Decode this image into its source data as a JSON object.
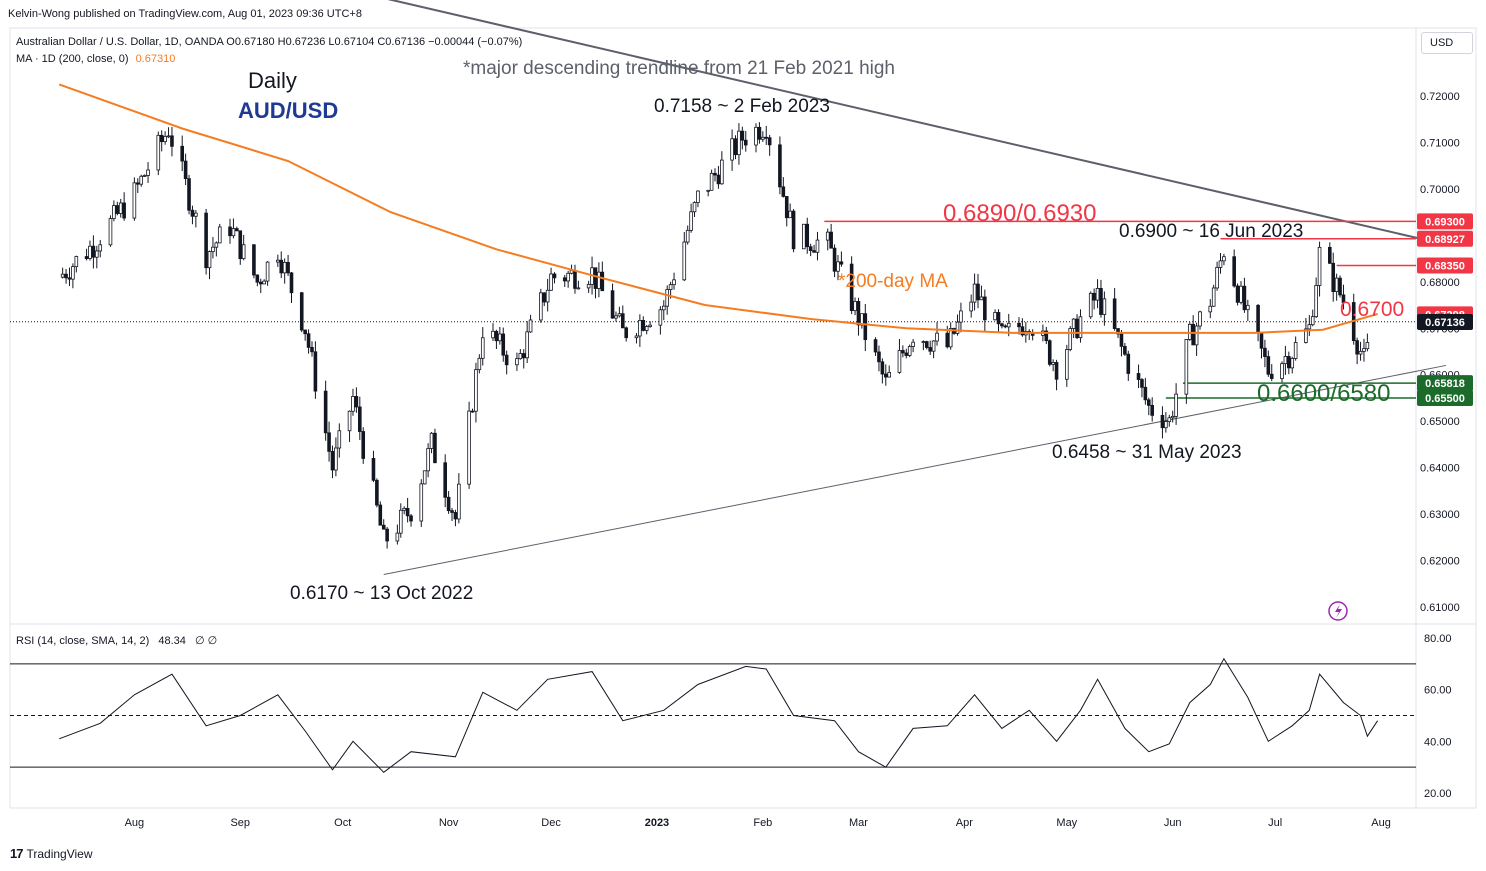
{
  "header": {
    "published": "Kelvin-Wong published on TradingView.com, Aug 01, 2023 09:36 UTC+8",
    "symbol_line": "Australian Dollar / U.S. Dollar, 1D, OANDA  O0.67180  H0.67236  L0.67104  C0.67136  −0.00044 (−0.07%)",
    "ma_label": "MA · 1D (200, close, 0)",
    "ma_value": "0.67310",
    "currency_button": "USD"
  },
  "annotations": {
    "daily": "Daily",
    "pair": "AUD/USD",
    "trendline_note": "*major descending trendline from 21 Feb 2021 high",
    "high_feb": "0.7158 ~ 2 Feb 2023",
    "resistance_zone": "0.6890/0.6930",
    "high_jun": "0.6900 ~ 16 Jun 2023",
    "ma_note": "*200-day MA",
    "level_0700": "0.6700",
    "support_zone": "0.6600/6580",
    "low_may": "0.6458 ~ 31 May 2023",
    "low_oct": "0.6170 ~ 13 Oct 2022"
  },
  "rsi_legend": {
    "label": "RSI (14, close, SMA, 14, 2)",
    "value": "48.34",
    "extra": "∅ ∅"
  },
  "branding": "TradingView",
  "colors": {
    "up": "#131722",
    "down": "#131722",
    "ma": "#f57c20",
    "resistance": "#f23645",
    "support": "#1b6b2a",
    "trendline": "#5d606b",
    "rsi_line": "#131722",
    "label_blue": "#1f3a93"
  },
  "chart_data": {
    "type": "candlestick",
    "price_axis": {
      "ticks": [
        "0.72000",
        "0.71000",
        "0.70000",
        "0.69000",
        "0.68000",
        "0.67000",
        "0.66000",
        "0.65000",
        "0.64000",
        "0.63000",
        "0.62000",
        "0.61000"
      ],
      "min": 0.608,
      "max": 0.727
    },
    "time_axis": [
      "Aug",
      "Sep",
      "Oct",
      "Nov",
      "Dec",
      "2023",
      "Feb",
      "Mar",
      "Apr",
      "May",
      "Jun",
      "Jul",
      "Aug"
    ],
    "price_labels": [
      {
        "text": "0.69300",
        "value": 0.693,
        "color": "#f23645"
      },
      {
        "text": "0.68927",
        "value": 0.68927,
        "color": "#f23645"
      },
      {
        "text": "0.68350",
        "value": 0.6835,
        "color": "#f23645"
      },
      {
        "text": "0.67298",
        "value": 0.67298,
        "color": "#f23645"
      },
      {
        "text": "0.67136",
        "value": 0.67136,
        "color": "#131722"
      },
      {
        "text": "0.65818",
        "value": 0.65818,
        "color": "#1b6b2a"
      },
      {
        "text": "0.65500",
        "value": 0.655,
        "color": "#1b6b2a"
      }
    ],
    "close_series": [
      {
        "d": "2022-07-10",
        "c": 0.681
      },
      {
        "d": "2022-07-20",
        "c": 0.688
      },
      {
        "d": "2022-08-01",
        "c": 0.699
      },
      {
        "d": "2022-08-11",
        "c": 0.713
      },
      {
        "d": "2022-08-22",
        "c": 0.686
      },
      {
        "d": "2022-08-29",
        "c": 0.692
      },
      {
        "d": "2022-09-06",
        "c": 0.68
      },
      {
        "d": "2022-09-12",
        "c": 0.687
      },
      {
        "d": "2022-09-20",
        "c": 0.67
      },
      {
        "d": "2022-09-28",
        "c": 0.64
      },
      {
        "d": "2022-10-04",
        "c": 0.655
      },
      {
        "d": "2022-10-13",
        "c": 0.624
      },
      {
        "d": "2022-10-21",
        "c": 0.631
      },
      {
        "d": "2022-10-27",
        "c": 0.645
      },
      {
        "d": "2022-11-03",
        "c": 0.629
      },
      {
        "d": "2022-11-11",
        "c": 0.67
      },
      {
        "d": "2022-11-21",
        "c": 0.662
      },
      {
        "d": "2022-12-01",
        "c": 0.681
      },
      {
        "d": "2022-12-13",
        "c": 0.682
      },
      {
        "d": "2022-12-22",
        "c": 0.669
      },
      {
        "d": "2023-01-03",
        "c": 0.675
      },
      {
        "d": "2023-01-13",
        "c": 0.698
      },
      {
        "d": "2023-01-26",
        "c": 0.711
      },
      {
        "d": "2023-02-02",
        "c": 0.714
      },
      {
        "d": "2023-02-10",
        "c": 0.69
      },
      {
        "d": "2023-02-20",
        "c": 0.688
      },
      {
        "d": "2023-02-28",
        "c": 0.674
      },
      {
        "d": "2023-03-09",
        "c": 0.658
      },
      {
        "d": "2023-03-17",
        "c": 0.669
      },
      {
        "d": "2023-03-27",
        "c": 0.666
      },
      {
        "d": "2023-04-04",
        "c": 0.678
      },
      {
        "d": "2023-04-12",
        "c": 0.668
      },
      {
        "d": "2023-04-20",
        "c": 0.672
      },
      {
        "d": "2023-04-28",
        "c": 0.662
      },
      {
        "d": "2023-05-05",
        "c": 0.672
      },
      {
        "d": "2023-05-10",
        "c": 0.677
      },
      {
        "d": "2023-05-18",
        "c": 0.664
      },
      {
        "d": "2023-05-25",
        "c": 0.653
      },
      {
        "d": "2023-05-31",
        "c": 0.65
      },
      {
        "d": "2023-06-06",
        "c": 0.668
      },
      {
        "d": "2023-06-12",
        "c": 0.676
      },
      {
        "d": "2023-06-16",
        "c": 0.687
      },
      {
        "d": "2023-06-23",
        "c": 0.672
      },
      {
        "d": "2023-06-29",
        "c": 0.661
      },
      {
        "d": "2023-07-06",
        "c": 0.665
      },
      {
        "d": "2023-07-11",
        "c": 0.67
      },
      {
        "d": "2023-07-14",
        "c": 0.686
      },
      {
        "d": "2023-07-21",
        "c": 0.676
      },
      {
        "d": "2023-07-27",
        "c": 0.663
      },
      {
        "d": "2023-07-31",
        "c": 0.6714
      }
    ],
    "ma200": {
      "name": "MA 200",
      "points": [
        {
          "d": "2022-07-10",
          "v": 0.7225
        },
        {
          "d": "2022-08-15",
          "v": 0.713
        },
        {
          "d": "2022-09-15",
          "v": 0.706
        },
        {
          "d": "2022-10-15",
          "v": 0.695
        },
        {
          "d": "2022-11-15",
          "v": 0.687
        },
        {
          "d": "2022-12-15",
          "v": 0.681
        },
        {
          "d": "2023-01-15",
          "v": 0.675
        },
        {
          "d": "2023-02-15",
          "v": 0.672
        },
        {
          "d": "2023-03-15",
          "v": 0.67
        },
        {
          "d": "2023-04-15",
          "v": 0.669
        },
        {
          "d": "2023-05-15",
          "v": 0.669
        },
        {
          "d": "2023-06-05",
          "v": 0.669
        },
        {
          "d": "2023-06-25",
          "v": 0.669
        },
        {
          "d": "2023-07-15",
          "v": 0.6697
        },
        {
          "d": "2023-07-31",
          "v": 0.6731
        }
      ]
    },
    "trendlines": [
      {
        "from": {
          "d": "2022-09-20",
          "v": 0.745
        },
        "to": {
          "d": "2023-08-20",
          "v": 0.688
        }
      },
      {
        "from": {
          "d": "2022-10-13",
          "v": 0.617
        },
        "to": {
          "d": "2023-08-20",
          "v": 0.662
        }
      }
    ],
    "levels": [
      {
        "v": 0.693,
        "from": "2023-02-19",
        "color": "#f23645"
      },
      {
        "v": 0.68927,
        "from": "2023-06-15",
        "color": "#f23645"
      },
      {
        "v": 0.6835,
        "from": "2023-07-19",
        "color": "#f23645"
      },
      {
        "v": 0.65818,
        "from": "2023-06-04",
        "color": "#1b6b2a"
      },
      {
        "v": 0.655,
        "from": "2023-05-30",
        "color": "#1b6b2a"
      }
    ],
    "rsi": {
      "axis_ticks": [
        "80.00",
        "60.00",
        "40.00",
        "20.00"
      ],
      "min": 14,
      "max": 82,
      "bands": [
        70,
        50,
        30
      ],
      "points": [
        {
          "d": "2022-07-10",
          "v": 41
        },
        {
          "d": "2022-07-22",
          "v": 47
        },
        {
          "d": "2022-08-01",
          "v": 58
        },
        {
          "d": "2022-08-12",
          "v": 66
        },
        {
          "d": "2022-08-22",
          "v": 46
        },
        {
          "d": "2022-09-01",
          "v": 50
        },
        {
          "d": "2022-09-12",
          "v": 58
        },
        {
          "d": "2022-09-20",
          "v": 44
        },
        {
          "d": "2022-09-28",
          "v": 29
        },
        {
          "d": "2022-10-04",
          "v": 40
        },
        {
          "d": "2022-10-13",
          "v": 28
        },
        {
          "d": "2022-10-21",
          "v": 36
        },
        {
          "d": "2022-11-03",
          "v": 34
        },
        {
          "d": "2022-11-11",
          "v": 59
        },
        {
          "d": "2022-11-21",
          "v": 52
        },
        {
          "d": "2022-11-30",
          "v": 64
        },
        {
          "d": "2022-12-13",
          "v": 67
        },
        {
          "d": "2022-12-22",
          "v": 48
        },
        {
          "d": "2023-01-03",
          "v": 52
        },
        {
          "d": "2023-01-13",
          "v": 62
        },
        {
          "d": "2023-01-27",
          "v": 69
        },
        {
          "d": "2023-02-02",
          "v": 68
        },
        {
          "d": "2023-02-10",
          "v": 50
        },
        {
          "d": "2023-02-22",
          "v": 48
        },
        {
          "d": "2023-03-01",
          "v": 36
        },
        {
          "d": "2023-03-09",
          "v": 30
        },
        {
          "d": "2023-03-17",
          "v": 45
        },
        {
          "d": "2023-03-27",
          "v": 46
        },
        {
          "d": "2023-04-04",
          "v": 58
        },
        {
          "d": "2023-04-12",
          "v": 45
        },
        {
          "d": "2023-04-20",
          "v": 52
        },
        {
          "d": "2023-04-28",
          "v": 40
        },
        {
          "d": "2023-05-05",
          "v": 52
        },
        {
          "d": "2023-05-10",
          "v": 64
        },
        {
          "d": "2023-05-18",
          "v": 45
        },
        {
          "d": "2023-05-25",
          "v": 36
        },
        {
          "d": "2023-05-31",
          "v": 39
        },
        {
          "d": "2023-06-06",
          "v": 55
        },
        {
          "d": "2023-06-12",
          "v": 62
        },
        {
          "d": "2023-06-16",
          "v": 72
        },
        {
          "d": "2023-06-23",
          "v": 57
        },
        {
          "d": "2023-06-29",
          "v": 40
        },
        {
          "d": "2023-07-06",
          "v": 46
        },
        {
          "d": "2023-07-11",
          "v": 52
        },
        {
          "d": "2023-07-14",
          "v": 66
        },
        {
          "d": "2023-07-21",
          "v": 55
        },
        {
          "d": "2023-07-26",
          "v": 50
        },
        {
          "d": "2023-07-28",
          "v": 42
        },
        {
          "d": "2023-07-31",
          "v": 48
        }
      ]
    }
  }
}
